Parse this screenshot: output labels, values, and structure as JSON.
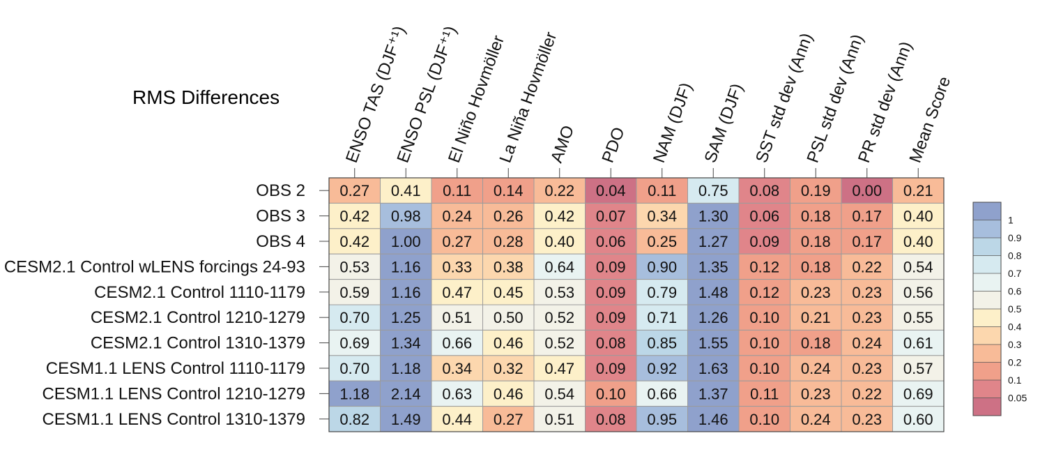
{
  "chart_data": {
    "type": "heatmap",
    "title": "RMS Differences",
    "columns": [
      "ENSO TAS (DJF⁺¹)",
      "ENSO PSL (DJF⁺¹)",
      "El Niño Hovmöller",
      "La Niña Hovmöller",
      "AMO",
      "PDO",
      "NAM (DJF)",
      "SAM (DJF)",
      "SST std dev (Ann)",
      "PSL std dev (Ann)",
      "PR std dev (Ann)",
      "Mean Score"
    ],
    "rows": [
      "OBS 2",
      "OBS 3",
      "OBS 4",
      "CESM2.1 Control wLENS forcings 24-93",
      "CESM2.1 Control 1110-1179",
      "CESM2.1 Control 1210-1279",
      "CESM2.1 Control 1310-1379",
      "CESM1.1 LENS Control 1110-1179",
      "CESM1.1 LENS Control 1210-1279",
      "CESM1.1 LENS Control 1310-1379"
    ],
    "values": [
      [
        "0.27",
        "0.41",
        "0.11",
        "0.14",
        "0.22",
        "0.04",
        "0.11",
        "0.75",
        "0.08",
        "0.19",
        "0.00",
        "0.21"
      ],
      [
        "0.42",
        "0.98",
        "0.24",
        "0.26",
        "0.42",
        "0.07",
        "0.34",
        "1.30",
        "0.06",
        "0.18",
        "0.17",
        "0.40"
      ],
      [
        "0.42",
        "1.00",
        "0.27",
        "0.28",
        "0.40",
        "0.06",
        "0.25",
        "1.27",
        "0.09",
        "0.18",
        "0.17",
        "0.40"
      ],
      [
        "0.53",
        "1.16",
        "0.33",
        "0.38",
        "0.64",
        "0.09",
        "0.90",
        "1.35",
        "0.12",
        "0.18",
        "0.22",
        "0.54"
      ],
      [
        "0.59",
        "1.16",
        "0.47",
        "0.45",
        "0.53",
        "0.09",
        "0.79",
        "1.48",
        "0.12",
        "0.23",
        "0.23",
        "0.56"
      ],
      [
        "0.70",
        "1.25",
        "0.51",
        "0.50",
        "0.52",
        "0.09",
        "0.71",
        "1.26",
        "0.10",
        "0.21",
        "0.23",
        "0.55"
      ],
      [
        "0.69",
        "1.34",
        "0.66",
        "0.46",
        "0.52",
        "0.08",
        "0.85",
        "1.55",
        "0.10",
        "0.18",
        "0.24",
        "0.61"
      ],
      [
        "0.70",
        "1.18",
        "0.34",
        "0.32",
        "0.47",
        "0.09",
        "0.92",
        "1.63",
        "0.10",
        "0.24",
        "0.23",
        "0.57"
      ],
      [
        "1.18",
        "2.14",
        "0.63",
        "0.46",
        "0.54",
        "0.10",
        "0.66",
        "1.37",
        "0.11",
        "0.23",
        "0.22",
        "0.69"
      ],
      [
        "0.82",
        "1.49",
        "0.44",
        "0.27",
        "0.51",
        "0.08",
        "0.95",
        "1.46",
        "0.10",
        "0.24",
        "0.23",
        "0.60"
      ]
    ],
    "colorbar": {
      "ticks": [
        "1",
        "0.9",
        "0.8",
        "0.7",
        "0.6",
        "0.5",
        "0.4",
        "0.3",
        "0.2",
        "0.1",
        "0.05"
      ],
      "colors": [
        "#8fa1cc",
        "#a7bedd",
        "#bcd7e7",
        "#d6eaf0",
        "#e9f3f2",
        "#f3f2e8",
        "#fdf0c9",
        "#fcd7ae",
        "#f8bb98",
        "#f0a08a",
        "#e0858a",
        "#cd7185"
      ]
    }
  }
}
